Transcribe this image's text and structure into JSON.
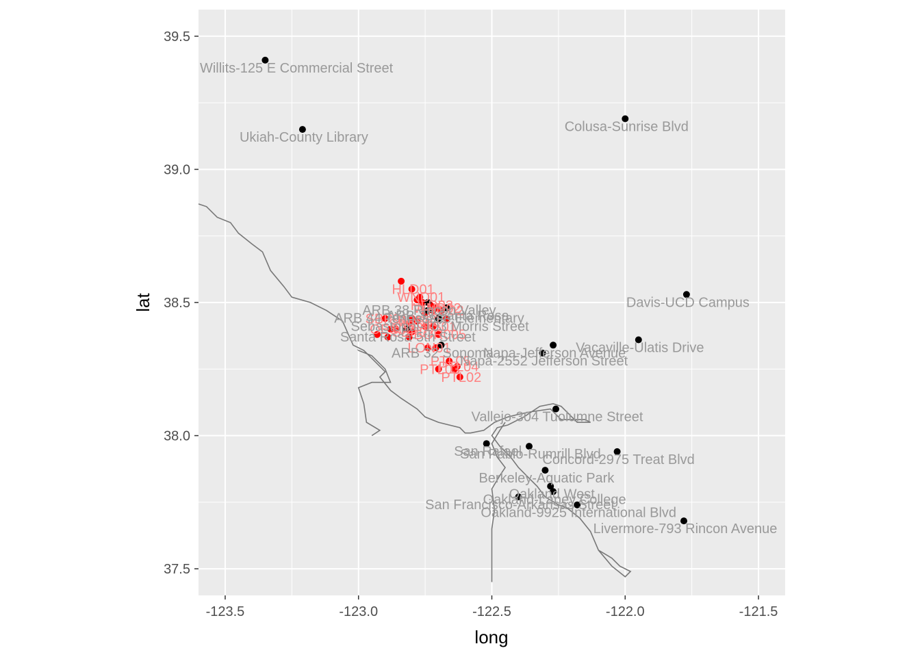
{
  "chart_data": {
    "type": "scatter",
    "title": "",
    "xlabel": "long",
    "ylabel": "lat",
    "xlim": [
      -123.6,
      -121.4
    ],
    "ylim": [
      37.4,
      39.6
    ],
    "x_ticks": [
      "-123.5",
      "-123.0",
      "-122.5",
      "-122.0",
      "-121.5"
    ],
    "y_ticks": [
      "37.5",
      "38.0",
      "38.5",
      "39.0",
      "39.5"
    ],
    "grid": true,
    "panel_background": "#ebebeb",
    "colors": {
      "monitor": "#000000",
      "monitor_label": "#999999",
      "fire": "#ff0000",
      "fire_label": "#ff8080",
      "coast": "#777777"
    },
    "monitor_series": [
      {
        "x": -123.35,
        "y": 39.41,
        "label": "Willits-125 E Commercial Street"
      },
      {
        "x": -123.21,
        "y": 39.15,
        "label": "Ukiah-County Library"
      },
      {
        "x": -122.0,
        "y": 39.19,
        "label": "Colusa-Sunrise Blvd"
      },
      {
        "x": -121.77,
        "y": 38.53,
        "label": "Davis-UCD Campus"
      },
      {
        "x": -121.95,
        "y": 38.36,
        "label": "Vacaville-Ulatis Drive"
      },
      {
        "x": -122.27,
        "y": 38.34,
        "label": "Napa-Jefferson Avenue"
      },
      {
        "x": -122.31,
        "y": 38.31,
        "label": "Napa-2552 Jefferson Street"
      },
      {
        "x": -122.74,
        "y": 38.5,
        "label": "ARB 38 Rincon Valley"
      },
      {
        "x": -122.74,
        "y": 38.47,
        "label": "ARB 44 Tennessee Elementary"
      },
      {
        "x": -122.69,
        "y": 38.34,
        "label": "ARB 32 Sonoma"
      },
      {
        "x": -122.67,
        "y": 38.48,
        "label": "ARB 33 Santa Rosa"
      },
      {
        "x": -122.7,
        "y": 38.44,
        "label": "Sebastopol-103 Morris Street"
      },
      {
        "x": -122.82,
        "y": 38.4,
        "label": "Santa Rosa-5th Street"
      },
      {
        "x": -122.26,
        "y": 38.1,
        "label": "Vallejo-304 Tuolumne Street"
      },
      {
        "x": -122.52,
        "y": 37.97,
        "label": "San Rafael"
      },
      {
        "x": -122.36,
        "y": 37.96,
        "label": "San Pablo-Rumrill Blvd"
      },
      {
        "x": -122.03,
        "y": 37.94,
        "label": "Concord-2975 Treat Blvd"
      },
      {
        "x": -122.3,
        "y": 37.87,
        "label": "Berkeley-Aquatic Park"
      },
      {
        "x": -122.28,
        "y": 37.81,
        "label": "Oakland West"
      },
      {
        "x": -122.27,
        "y": 37.79,
        "label": "Oakland-Laney College"
      },
      {
        "x": -122.4,
        "y": 37.77,
        "label": "San Francisco-Arkansas Street"
      },
      {
        "x": -122.18,
        "y": 37.74,
        "label": "Oakland-9925 International Blvd"
      },
      {
        "x": -121.78,
        "y": 37.68,
        "label": "Livermore-793 Rincon Avenue"
      }
    ],
    "fire_series": [
      {
        "x": -122.84,
        "y": 38.58,
        "label": ""
      },
      {
        "x": -122.8,
        "y": 38.55,
        "label": "HLD01"
      },
      {
        "x": -122.77,
        "y": 38.52,
        "label": "WND01"
      },
      {
        "x": -122.78,
        "y": 38.51,
        "label": ""
      },
      {
        "x": -122.76,
        "y": 38.5,
        "label": ""
      },
      {
        "x": -122.73,
        "y": 38.49,
        "label": "HLD03"
      },
      {
        "x": -122.71,
        "y": 38.48,
        "label": "WND02"
      },
      {
        "x": -122.69,
        "y": 38.47,
        "label": "HLD02"
      },
      {
        "x": -122.72,
        "y": 38.47,
        "label": ""
      },
      {
        "x": -122.75,
        "y": 38.46,
        "label": ""
      },
      {
        "x": -122.9,
        "y": 38.44,
        "label": "SBP01"
      },
      {
        "x": -122.8,
        "y": 38.44,
        "label": ""
      },
      {
        "x": -122.67,
        "y": 38.44,
        "label": ""
      },
      {
        "x": -122.78,
        "y": 38.43,
        "label": "SRP02"
      },
      {
        "x": -122.81,
        "y": 38.42,
        "label": "SRP01"
      },
      {
        "x": -122.72,
        "y": 38.41,
        "label": "OES01"
      },
      {
        "x": -122.75,
        "y": 38.41,
        "label": ""
      },
      {
        "x": -122.88,
        "y": 38.4,
        "label": "OES02"
      },
      {
        "x": -122.86,
        "y": 38.4,
        "label": ""
      },
      {
        "x": -122.8,
        "y": 38.39,
        "label": "SBP02"
      },
      {
        "x": -122.7,
        "y": 38.38,
        "label": "BOR005"
      },
      {
        "x": -122.81,
        "y": 38.37,
        "label": ""
      },
      {
        "x": -122.93,
        "y": 38.38,
        "label": ""
      },
      {
        "x": -122.89,
        "y": 38.37,
        "label": ""
      },
      {
        "x": -122.74,
        "y": 38.33,
        "label": "LON01"
      },
      {
        "x": -122.71,
        "y": 38.33,
        "label": ""
      },
      {
        "x": -122.66,
        "y": 38.28,
        "label": "PTL05"
      },
      {
        "x": -122.63,
        "y": 38.26,
        "label": "PTL04"
      },
      {
        "x": -122.64,
        "y": 38.25,
        "label": ""
      },
      {
        "x": -122.7,
        "y": 38.25,
        "label": "PTL03"
      },
      {
        "x": -122.62,
        "y": 38.22,
        "label": "PTL02"
      }
    ]
  }
}
